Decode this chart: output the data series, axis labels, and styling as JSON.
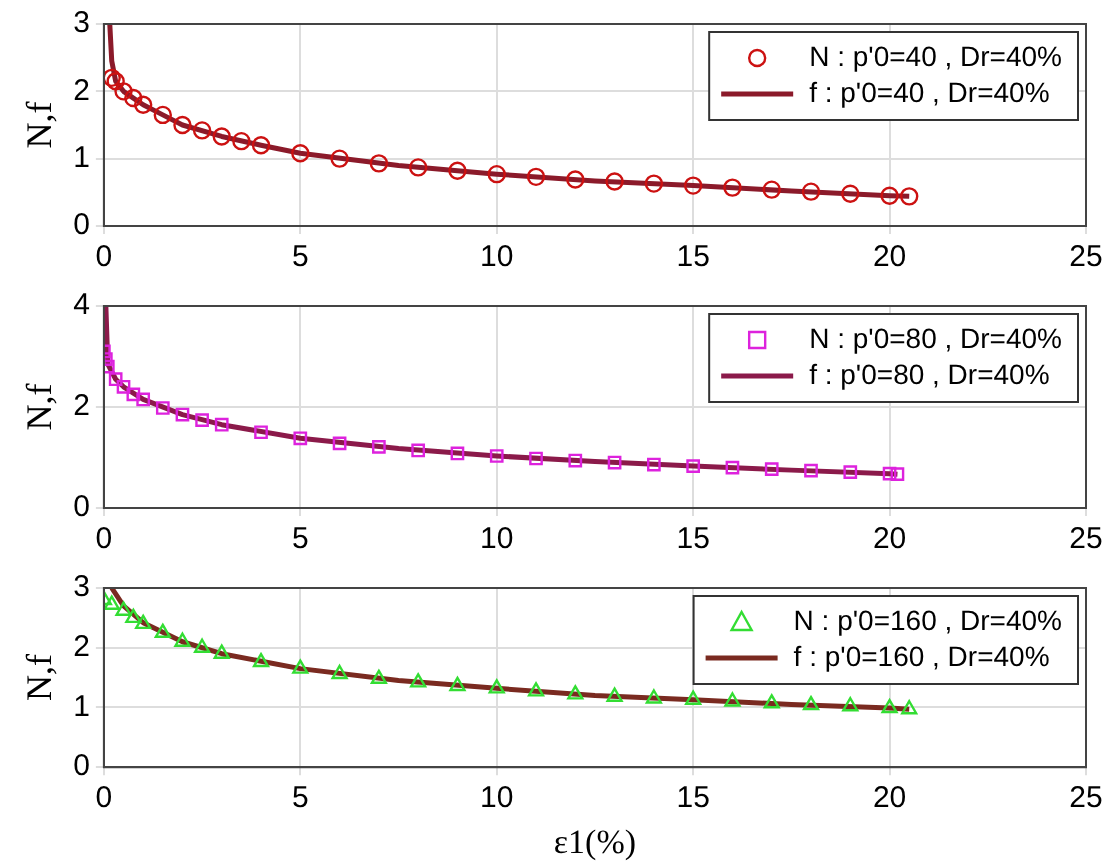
{
  "chart_data": [
    {
      "type": "line",
      "ylabel": "N,f",
      "xlim": [
        0,
        25
      ],
      "xticks": [
        0,
        5,
        10,
        15,
        20,
        25
      ],
      "ylim": [
        0,
        3
      ],
      "yticks": [
        0,
        1,
        2,
        3
      ],
      "grid": true,
      "legend": "top right",
      "series": [
        {
          "name": "N : p'0=40 , Dr=40%",
          "type": "scatter",
          "marker": "circle",
          "color": "#cc1111",
          "x": [
            0.2,
            0.3,
            0.5,
            0.75,
            1,
            1.5,
            2,
            2.5,
            3,
            3.5,
            4,
            5,
            6,
            7,
            8,
            9,
            10,
            11,
            12,
            13,
            14,
            15,
            16,
            17,
            18,
            19,
            20,
            20.5
          ],
          "values": [
            2.2,
            2.15,
            2.0,
            1.9,
            1.8,
            1.65,
            1.5,
            1.42,
            1.33,
            1.26,
            1.2,
            1.08,
            1.0,
            0.93,
            0.87,
            0.82,
            0.77,
            0.73,
            0.69,
            0.66,
            0.63,
            0.6,
            0.57,
            0.54,
            0.51,
            0.48,
            0.45,
            0.44
          ]
        },
        {
          "name": "f : p'0=40 , Dr=40%",
          "type": "line",
          "marker": "none",
          "color": "#8b1a2a",
          "x": [
            0.15,
            0.2,
            0.3,
            0.5,
            0.75,
            1,
            1.5,
            2,
            3,
            4,
            5,
            7.5,
            10,
            12.5,
            15,
            17.5,
            20,
            20.5
          ],
          "values": [
            3,
            2.45,
            2.15,
            2.0,
            1.9,
            1.8,
            1.65,
            1.5,
            1.33,
            1.2,
            1.08,
            0.9,
            0.77,
            0.67,
            0.6,
            0.52,
            0.45,
            0.44
          ]
        }
      ]
    },
    {
      "type": "line",
      "ylabel": "N,f",
      "xlim": [
        0,
        25
      ],
      "xticks": [
        0,
        5,
        10,
        15,
        20,
        25
      ],
      "ylim": [
        0,
        4
      ],
      "yticks": [
        0,
        2,
        4
      ],
      "grid": true,
      "legend": "top right",
      "series": [
        {
          "name": "N : p'0=80 , Dr=40%",
          "type": "scatter",
          "marker": "square",
          "color": "#dd22dd",
          "x": [
            0,
            0.05,
            0.1,
            0.3,
            0.5,
            0.75,
            1,
            1.5,
            2,
            2.5,
            3,
            4,
            5,
            6,
            7,
            8,
            9,
            10,
            11,
            12,
            13,
            14,
            15,
            16,
            17,
            18,
            19,
            20,
            20.2
          ],
          "values": [
            3.1,
            2.95,
            2.8,
            2.55,
            2.4,
            2.25,
            2.15,
            1.98,
            1.85,
            1.74,
            1.65,
            1.5,
            1.38,
            1.28,
            1.21,
            1.14,
            1.08,
            1.03,
            0.98,
            0.94,
            0.9,
            0.86,
            0.83,
            0.8,
            0.77,
            0.74,
            0.71,
            0.68,
            0.67
          ]
        },
        {
          "name": "f : p'0=80 , Dr=40%",
          "type": "line",
          "marker": "none",
          "color": "#8b1a4a",
          "x": [
            0.05,
            0.1,
            0.3,
            0.5,
            1,
            2,
            3,
            5,
            7.5,
            10,
            12.5,
            15,
            17.5,
            20,
            20.2
          ],
          "values": [
            4,
            2.85,
            2.55,
            2.4,
            2.15,
            1.85,
            1.65,
            1.38,
            1.18,
            1.03,
            0.92,
            0.83,
            0.75,
            0.68,
            0.67
          ]
        }
      ]
    },
    {
      "type": "line",
      "xlabel": "ε1(%)",
      "ylabel": "N,f",
      "xlim": [
        0,
        25
      ],
      "xticks": [
        0,
        5,
        10,
        15,
        20,
        25
      ],
      "ylim": [
        0,
        3
      ],
      "yticks": [
        0,
        1,
        2,
        3
      ],
      "grid": true,
      "legend": "top right",
      "series": [
        {
          "name": "N : p'0=160 , Dr=40%",
          "type": "scatter",
          "marker": "triangle",
          "color": "#33dd33",
          "x": [
            0,
            0.2,
            0.5,
            0.75,
            1,
            1.5,
            2,
            2.5,
            3,
            4,
            5,
            6,
            7,
            8,
            9,
            10,
            11,
            12,
            13,
            14,
            15,
            16,
            17,
            18,
            19,
            20,
            20.5
          ],
          "values": [
            2.8,
            2.72,
            2.62,
            2.5,
            2.4,
            2.25,
            2.1,
            2.0,
            1.9,
            1.76,
            1.65,
            1.56,
            1.48,
            1.42,
            1.36,
            1.32,
            1.27,
            1.22,
            1.18,
            1.15,
            1.13,
            1.1,
            1.07,
            1.04,
            1.02,
            0.99,
            0.97
          ]
        },
        {
          "name": "f : p'0=160 , Dr=40%",
          "type": "line",
          "marker": "none",
          "color": "#7a2a20",
          "x": [
            0.2,
            0.5,
            1,
            2,
            3,
            5,
            7.5,
            10,
            12.5,
            15,
            17.5,
            20,
            20.5
          ],
          "values": [
            3,
            2.7,
            2.42,
            2.1,
            1.9,
            1.65,
            1.45,
            1.32,
            1.2,
            1.13,
            1.05,
            0.99,
            0.97
          ]
        }
      ]
    }
  ]
}
